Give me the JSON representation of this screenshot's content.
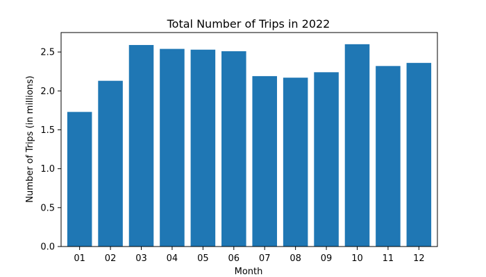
{
  "chart_data": {
    "type": "bar",
    "title": "Total Number of Trips in 2022",
    "xlabel": "Month",
    "ylabel": "Number of Trips (in millions)",
    "categories": [
      "01",
      "02",
      "03",
      "04",
      "05",
      "06",
      "07",
      "08",
      "09",
      "10",
      "11",
      "12"
    ],
    "values": [
      1.73,
      2.13,
      2.59,
      2.54,
      2.53,
      2.51,
      2.19,
      2.17,
      2.24,
      2.6,
      2.32,
      2.36
    ],
    "ylim": [
      0,
      2.75
    ],
    "yticks": [
      0.0,
      0.5,
      1.0,
      1.5,
      2.0,
      2.5
    ],
    "ytick_labels": [
      "0.0",
      "0.5",
      "1.0",
      "1.5",
      "2.0",
      "2.5"
    ],
    "grid": false,
    "legend": false,
    "colors": {
      "bar": "#1f77b4",
      "axis": "#000000",
      "background": "#ffffff"
    }
  }
}
